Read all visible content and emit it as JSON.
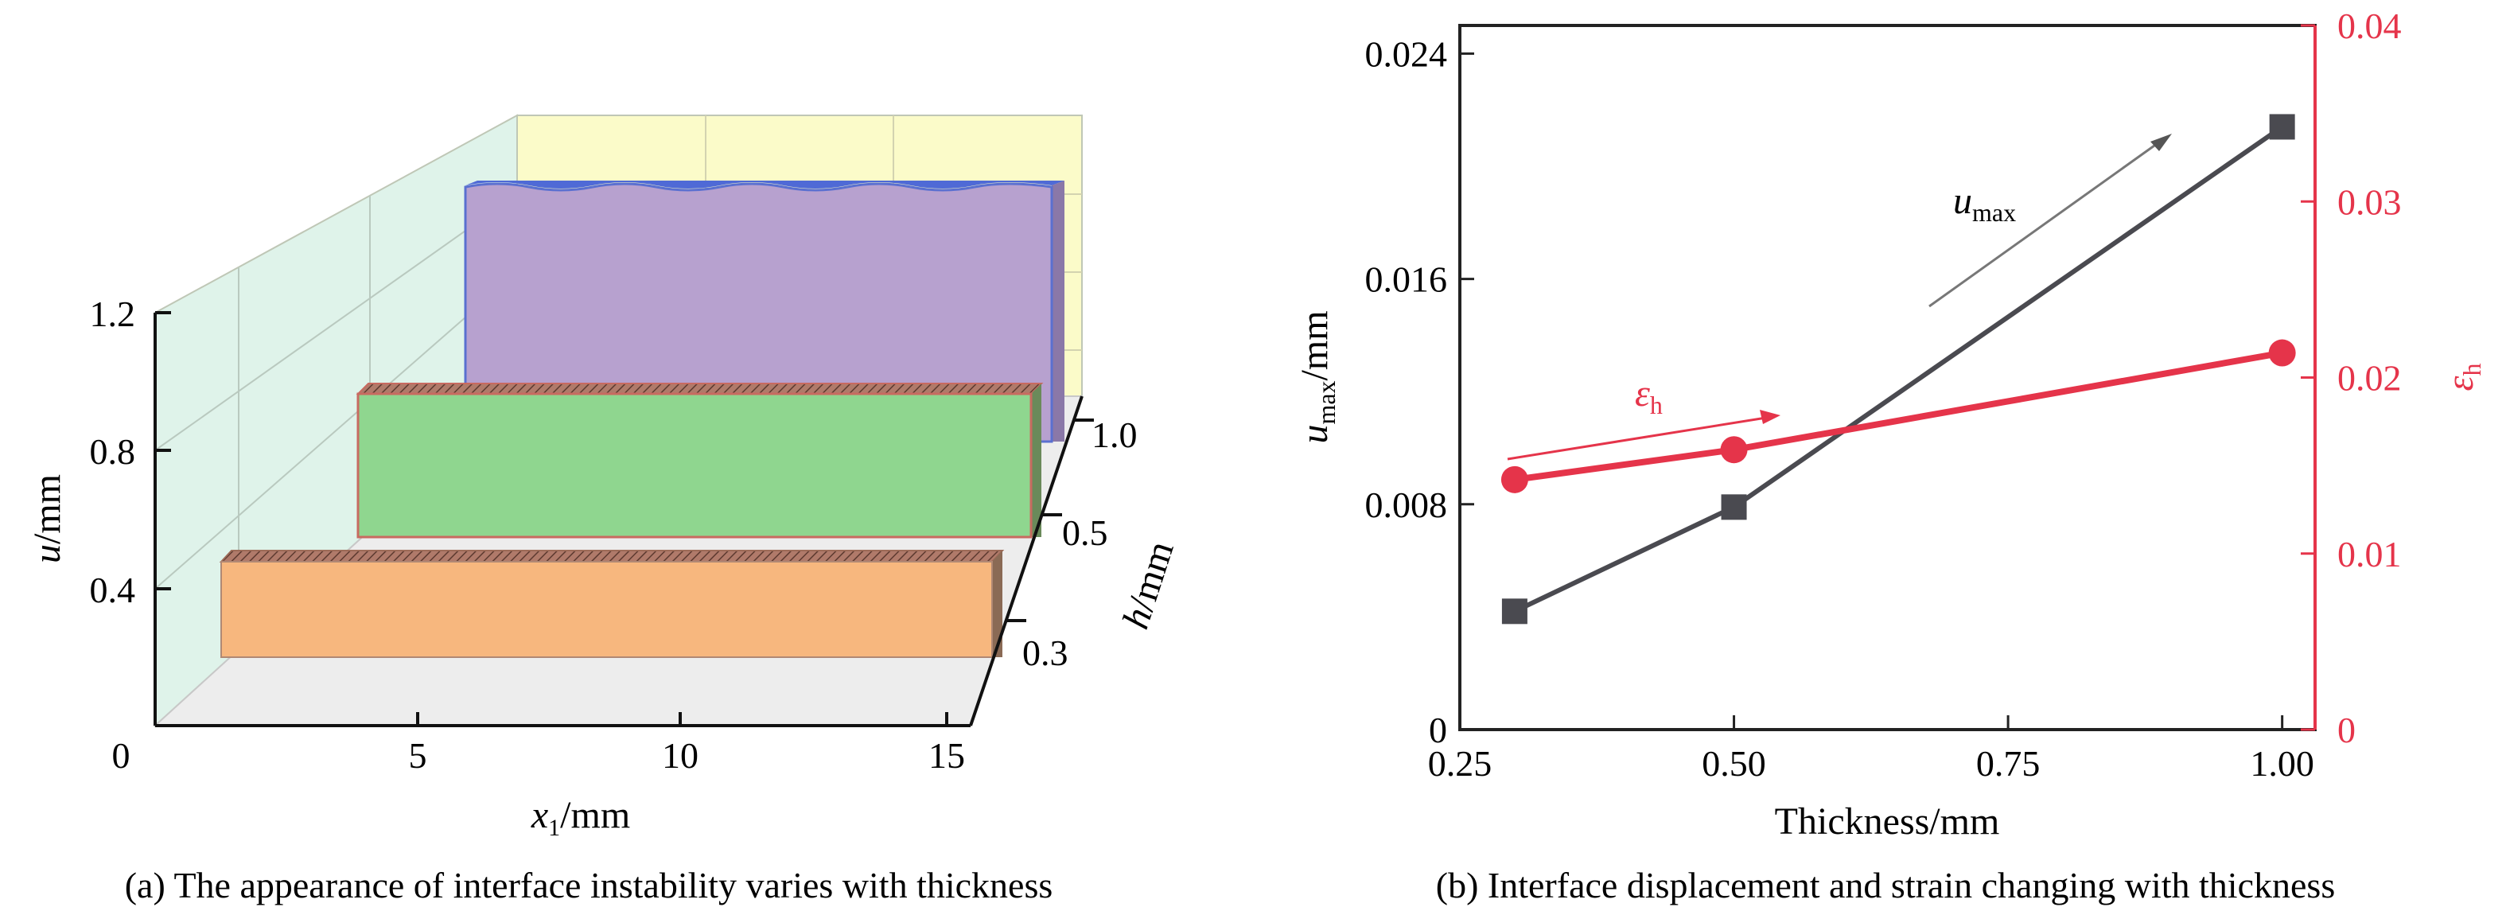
{
  "panel_a": {
    "caption": "(a) The appearance of interface instability varies with thickness",
    "xlabel_sym": "x",
    "xlabel_sub": "1",
    "xlabel_unit": "/mm",
    "ylabel_sym": "u",
    "ylabel_unit": "/mm",
    "hlabel_sym": "h",
    "hlabel_unit": "/mm",
    "x_ticks": [
      "0",
      "5",
      "10",
      "15"
    ],
    "u_ticks": [
      "0.4",
      "0.8",
      "1.2"
    ],
    "h_ticks": [
      "0.3",
      "0.5",
      "1.0"
    ],
    "colors": {
      "h03": "#f7b77e",
      "h05": "#8fd68f",
      "h10": "#b7a1cf",
      "back_wall": "#fbfbc9",
      "side_wall": "#dff3ea",
      "floor": "#ededed"
    }
  },
  "panel_b": {
    "caption": "(b) Interface displacement and strain changing with thickness",
    "xlabel": "Thickness/mm",
    "ylabel_left_sym": "u",
    "ylabel_left_sub": "max",
    "ylabel_left_unit": "/mm",
    "ylabel_right_sym": "ε",
    "ylabel_right_sub": "h",
    "annot_u_sym": "u",
    "annot_u_sub": "max",
    "annot_e_sym": "ε",
    "annot_e_sub": "h",
    "x_ticks": [
      "0.25",
      "0.50",
      "0.75",
      "1.00"
    ],
    "left_ticks": [
      "0",
      "0.008",
      "0.016",
      "0.024"
    ],
    "right_ticks": [
      "0",
      "0.01",
      "0.02",
      "0.03",
      "0.04"
    ],
    "colors": {
      "u_series": "#4a4a50",
      "e_series": "#e5344a"
    }
  },
  "chart_data": [
    {
      "type": "bar",
      "title": "(a) The appearance of interface instability varies with thickness",
      "xlabel": "x1/mm",
      "ylabel": "u/mm",
      "zlabel": "h/mm",
      "categories": [
        "0.3",
        "0.5",
        "1.0"
      ],
      "series": [
        {
          "h": 0.3,
          "x_start": 1.8,
          "x_end": 15.0,
          "u": 0.44
        },
        {
          "h": 0.5,
          "x_start": 4.0,
          "x_end": 15.0,
          "u": 0.85
        },
        {
          "h": 1.0,
          "x_start": 5.5,
          "x_end": 15.0,
          "u": 1.52
        }
      ],
      "xlim": [
        0,
        15
      ],
      "ylim": [
        0,
        1.2
      ],
      "grid": true
    },
    {
      "type": "line",
      "title": "(b) Interface displacement and strain changing with thickness",
      "xlabel": "Thickness/mm",
      "ylabel": "umax/mm",
      "ylabel_right": "εh",
      "x": [
        0.3,
        0.5,
        1.0
      ],
      "series": [
        {
          "name": "umax",
          "axis": "left",
          "values": [
            0.0042,
            0.0079,
            0.0214
          ]
        },
        {
          "name": "εh",
          "axis": "right",
          "values": [
            0.0142,
            0.0159,
            0.0214
          ]
        }
      ],
      "xlim": [
        0.25,
        1.03
      ],
      "ylim": [
        0,
        0.025
      ],
      "ylim_right": [
        0,
        0.04
      ],
      "grid": false
    }
  ]
}
